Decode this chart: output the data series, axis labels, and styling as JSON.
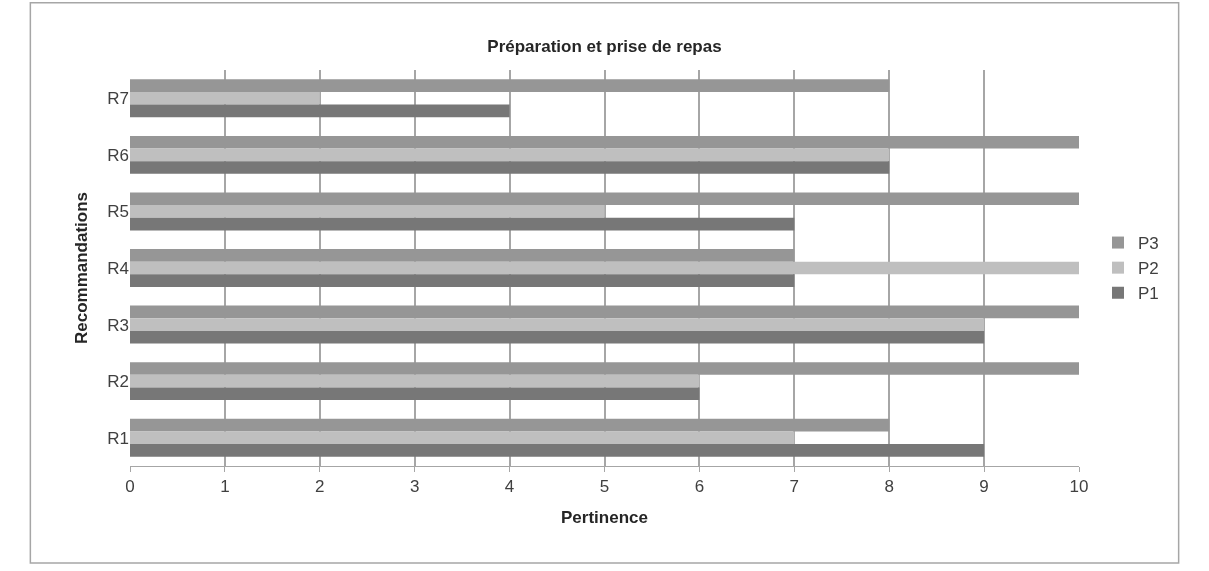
{
  "chart_data": {
    "type": "bar",
    "orientation": "horizontal",
    "title": "Préparation et prise de repas",
    "xlabel": "Pertinence",
    "ylabel": "Recommandations",
    "categories": [
      "R7",
      "R6",
      "R5",
      "R4",
      "R3",
      "R2",
      "R1"
    ],
    "series": [
      {
        "name": "P3",
        "color": "#969696",
        "values": [
          8,
          10,
          10,
          7,
          10,
          10,
          8
        ]
      },
      {
        "name": "P2",
        "color": "#bfbfbf",
        "values": [
          2,
          8,
          5,
          10,
          9,
          6,
          7
        ]
      },
      {
        "name": "P1",
        "color": "#777777",
        "values": [
          4,
          8,
          7,
          7,
          9,
          6,
          9
        ]
      }
    ],
    "xlim": [
      0,
      10
    ],
    "xticks": [
      0,
      1,
      2,
      3,
      4,
      5,
      6,
      7,
      8,
      9,
      10
    ],
    "grid": "x",
    "legend": "right"
  }
}
